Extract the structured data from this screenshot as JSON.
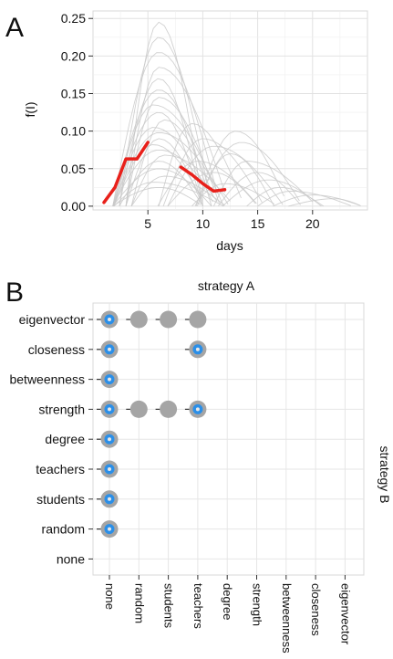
{
  "chart_data": [
    {
      "panel": "A",
      "type": "line",
      "xlabel": "days",
      "ylabel": "f(I)",
      "xticks": [
        5,
        10,
        15,
        20
      ],
      "yticks": [
        "0.00",
        "0.05",
        "0.10",
        "0.15",
        "0.20",
        "0.25"
      ],
      "xlim": [
        0,
        25
      ],
      "ylim": [
        -0.005,
        0.26
      ],
      "grid": true,
      "background_series": {
        "description_color": "#c9c9c9",
        "peaks": [
          [
            6,
            0.245
          ],
          [
            6,
            0.225
          ],
          [
            6,
            0.205
          ],
          [
            6,
            0.185
          ],
          [
            6,
            0.17
          ],
          [
            6,
            0.155
          ],
          [
            6,
            0.145
          ],
          [
            5.5,
            0.135
          ],
          [
            6,
            0.125
          ],
          [
            6.5,
            0.115
          ],
          [
            5.5,
            0.105
          ],
          [
            6,
            0.098
          ],
          [
            6,
            0.09
          ],
          [
            5.5,
            0.082
          ],
          [
            6,
            0.075
          ],
          [
            6.5,
            0.068
          ],
          [
            6,
            0.06
          ],
          [
            6,
            0.05
          ],
          [
            6.5,
            0.04
          ],
          [
            5.5,
            0.032
          ],
          [
            6,
            0.025
          ],
          [
            9,
            0.11
          ],
          [
            10,
            0.09
          ],
          [
            11,
            0.08
          ],
          [
            12.5,
            0.07
          ],
          [
            13,
            0.1
          ],
          [
            13.5,
            0.085
          ],
          [
            14,
            0.06
          ],
          [
            15,
            0.045
          ],
          [
            16,
            0.035
          ],
          [
            18,
            0.02
          ],
          [
            20,
            0.015
          ],
          [
            11,
            0.045
          ],
          [
            12,
            0.03
          ],
          [
            9.5,
            0.06
          ],
          [
            22,
            0.01
          ],
          [
            17,
            0.025
          ]
        ]
      },
      "highlight_series": [
        {
          "color": "#e8201a",
          "x": [
            1,
            2,
            3,
            4,
            5
          ],
          "y": [
            0.005,
            0.025,
            0.063,
            0.063,
            0.085
          ]
        },
        {
          "color": "#e8201a",
          "x": [
            8,
            9,
            10,
            11,
            12
          ],
          "y": [
            0.052,
            0.042,
            0.03,
            0.02,
            0.022
          ]
        }
      ]
    },
    {
      "panel": "B",
      "type": "scatter",
      "title": "strategy A",
      "right_label": "strategy B",
      "x_categories": [
        "none",
        "random",
        "students",
        "teachers",
        "degree",
        "strength",
        "betweenness",
        "closeness",
        "eigenvector"
      ],
      "y_categories": [
        "eigenvector",
        "closeness",
        "betweenness",
        "strength",
        "degree",
        "teachers",
        "students",
        "random",
        "none"
      ],
      "grid": true,
      "points": [
        {
          "x": "none",
          "y": "eigenvector",
          "inner": "blue"
        },
        {
          "x": "random",
          "y": "eigenvector",
          "inner": "none"
        },
        {
          "x": "students",
          "y": "eigenvector",
          "inner": "none"
        },
        {
          "x": "teachers",
          "y": "eigenvector",
          "inner": "none"
        },
        {
          "x": "none",
          "y": "closeness",
          "inner": "blue"
        },
        {
          "x": "teachers",
          "y": "closeness",
          "inner": "blue"
        },
        {
          "x": "none",
          "y": "betweenness",
          "inner": "blue"
        },
        {
          "x": "none",
          "y": "strength",
          "inner": "blue"
        },
        {
          "x": "random",
          "y": "strength",
          "inner": "none"
        },
        {
          "x": "students",
          "y": "strength",
          "inner": "none"
        },
        {
          "x": "teachers",
          "y": "strength",
          "inner": "blue"
        },
        {
          "x": "none",
          "y": "degree",
          "inner": "blue"
        },
        {
          "x": "none",
          "y": "teachers",
          "inner": "blue"
        },
        {
          "x": "none",
          "y": "students",
          "inner": "blue"
        },
        {
          "x": "none",
          "y": "random",
          "inner": "blue"
        }
      ],
      "colors": {
        "outer": "#a5a5a5",
        "inner_blue": "#2b8fe8",
        "inner_ring": "#e8e8e8"
      }
    }
  ],
  "panel_labels": {
    "a": "A",
    "b": "B"
  }
}
